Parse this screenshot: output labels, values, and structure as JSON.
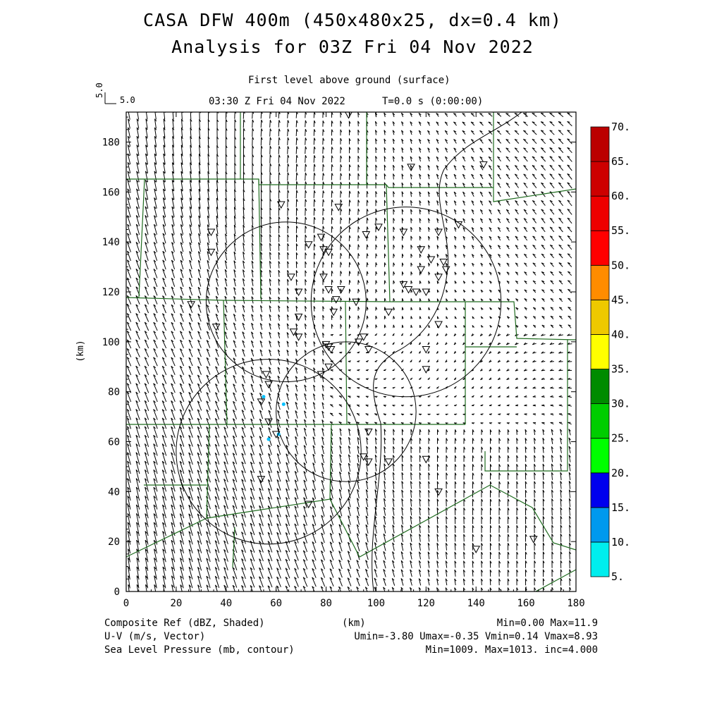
{
  "title_line1": "CASA DFW 400m (450x480x25, dx=0.4 km)",
  "title_line2": "Analysis for 03Z Fri 04 Nov 2022",
  "level_label": "First level above ground (surface)",
  "time_label": "03:30 Z Fri 04 Nov 2022",
  "time_step_label": "T=0.0 s (0:00:00)",
  "vector_ref_vertical": "5.0",
  "vector_ref_horizontal": "5.0",
  "footer": {
    "field1": "Composite Ref (dBZ, Shaded)",
    "field2": "U-V (m/s, Vector)",
    "field3": "Sea Level Pressure (mb, contour)",
    "xunit": "(km)",
    "stats1": "Min=0.00 Max=11.9",
    "stats2": "Umin=-3.80 Umax=-0.35 Vmin=0.14 Vmax=8.93",
    "stats3": "Min=1009. Max=1013. inc=4.000"
  },
  "colors": {
    "county_lines": "#1f6b1f",
    "frame": "#000000",
    "echo": "#00c0ff"
  },
  "chart_data": {
    "type": "heatmap",
    "xlabel": "",
    "ylabel": "(km)",
    "xlim": [
      0,
      180
    ],
    "ylim": [
      0,
      192
    ],
    "x_ticks": [
      "0",
      "20",
      "40",
      "60",
      "80",
      "100",
      "120",
      "140",
      "160",
      "180"
    ],
    "y_ticks": [
      "0",
      "20",
      "40",
      "60",
      "80",
      "100",
      "120",
      "140",
      "160",
      "180"
    ],
    "colorbar": {
      "labels": [
        "5.",
        "10.",
        "15.",
        "20.",
        "25.",
        "30.",
        "35.",
        "40.",
        "45.",
        "50.",
        "55.",
        "60.",
        "65.",
        "70."
      ],
      "colors": [
        "#00eeee",
        "#0099ee",
        "#0000ee",
        "#00ff00",
        "#00cd00",
        "#008b00",
        "#ffff00",
        "#eec900",
        "#ff8c00",
        "#ff0000",
        "#ee0000",
        "#cd0000",
        "#bb0000",
        "#ff00ff"
      ]
    },
    "radar_range_rings": [
      {
        "cx": 64,
        "cy": 116,
        "r": 32
      },
      {
        "cx": 112,
        "cy": 116,
        "r": 38
      },
      {
        "cx": 57,
        "cy": 56,
        "r": 37
      },
      {
        "cx": 88,
        "cy": 72,
        "r": 28
      }
    ],
    "wind_vector_field": {
      "u_range": [
        -3.8,
        -0.35
      ],
      "v_range": [
        0.14,
        8.93
      ]
    },
    "reflectivity_echoes": [
      {
        "x": 55,
        "y": 78
      },
      {
        "x": 63,
        "y": 75
      },
      {
        "x": 57,
        "y": 61
      },
      {
        "x": 61,
        "y": 63
      }
    ],
    "station_markers": [
      [
        89,
        191
      ],
      [
        114,
        170
      ],
      [
        143,
        171
      ],
      [
        62,
        155
      ],
      [
        85,
        154
      ],
      [
        101,
        146
      ],
      [
        133,
        147
      ],
      [
        34,
        144
      ],
      [
        111,
        144
      ],
      [
        125,
        144
      ],
      [
        34,
        136
      ],
      [
        73,
        139
      ],
      [
        78,
        142
      ],
      [
        96,
        143
      ],
      [
        81,
        136
      ],
      [
        79,
        137
      ],
      [
        118,
        137
      ],
      [
        122,
        133
      ],
      [
        127,
        132
      ],
      [
        128,
        129
      ],
      [
        118,
        129
      ],
      [
        125,
        126
      ],
      [
        66,
        126
      ],
      [
        79,
        126
      ],
      [
        69,
        120
      ],
      [
        81,
        121
      ],
      [
        86,
        121
      ],
      [
        111,
        123
      ],
      [
        113,
        121
      ],
      [
        116,
        120
      ],
      [
        120,
        120
      ],
      [
        84,
        117
      ],
      [
        92,
        116
      ],
      [
        26,
        115
      ],
      [
        69,
        110
      ],
      [
        83,
        112
      ],
      [
        105,
        112
      ],
      [
        125,
        107
      ],
      [
        36,
        106
      ],
      [
        67,
        104
      ],
      [
        69,
        102
      ],
      [
        95,
        102
      ],
      [
        81,
        98
      ],
      [
        82,
        97
      ],
      [
        80,
        99
      ],
      [
        93,
        100
      ],
      [
        97,
        97
      ],
      [
        120,
        97
      ],
      [
        81,
        90
      ],
      [
        78,
        87
      ],
      [
        120,
        89
      ],
      [
        56,
        87
      ],
      [
        57,
        83
      ],
      [
        54,
        76
      ],
      [
        57,
        68
      ],
      [
        60,
        63
      ],
      [
        97,
        64
      ],
      [
        95,
        54
      ],
      [
        97,
        52
      ],
      [
        105,
        52
      ],
      [
        120,
        53
      ],
      [
        54,
        45
      ],
      [
        125,
        40
      ],
      [
        73,
        35
      ],
      [
        140,
        17
      ],
      [
        163,
        21
      ]
    ]
  }
}
